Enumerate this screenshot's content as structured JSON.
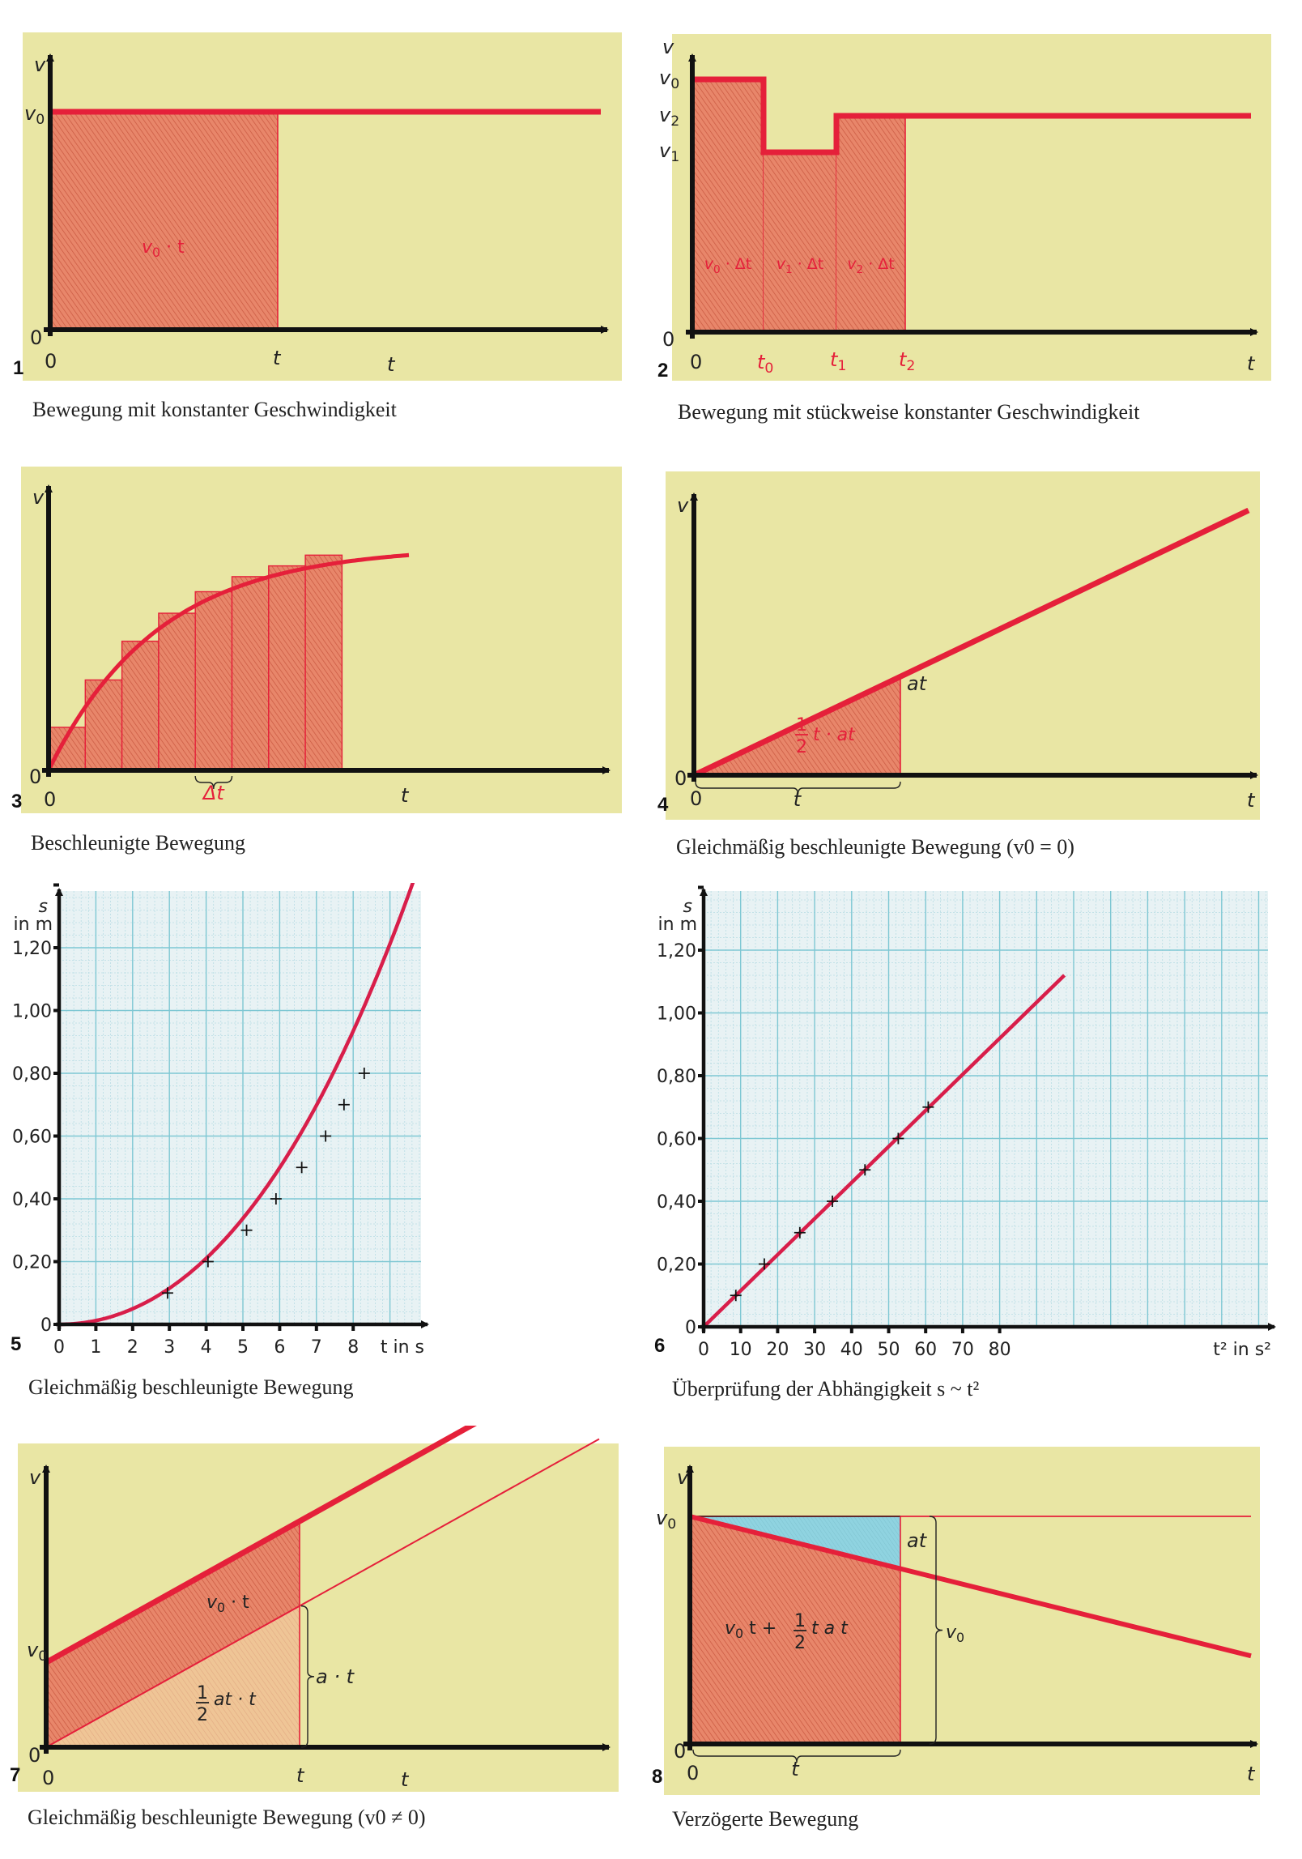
{
  "chart_data": [
    {
      "id": 1,
      "type": "area",
      "number": "1",
      "caption": "Bewegung mit konstanter Geschwindigkeit",
      "xlabel": "t",
      "ylabel": "v",
      "x_origin_label": "0",
      "y_origin_label": "0",
      "x_tick_labels": [
        "t"
      ],
      "y_tick_labels": [
        "v0"
      ],
      "series": [
        {
          "name": "v(t)",
          "x": [
            0,
            1.4
          ],
          "y": [
            1,
            1
          ]
        }
      ],
      "shaded": {
        "from": 0,
        "to": 1,
        "label": "v0 · t"
      },
      "xlim": [
        0,
        1.45
      ],
      "ylim": [
        0,
        1.6
      ]
    },
    {
      "id": 2,
      "type": "area",
      "number": "2",
      "caption": "Bewegung mit stückweise konstanter Geschwindigkeit",
      "xlabel": "t",
      "ylabel": "v",
      "x_origin_label": "0",
      "y_origin_label": "0",
      "x_tick_labels": [
        "t0",
        "t1",
        "t2"
      ],
      "y_tick_labels": [
        "v0",
        "v2",
        "v1"
      ],
      "steps": [
        {
          "from": 0,
          "to": 1,
          "v": 1.0,
          "label": "v0 · Δt"
        },
        {
          "from": 1,
          "to": 2,
          "v": 0.52,
          "label": "v1 · Δt"
        },
        {
          "from": 2,
          "to": 3,
          "v": 0.76,
          "label": "v2 · Δt"
        }
      ],
      "tail": {
        "from": 3,
        "to": 5.0,
        "v": 0.76
      },
      "xlim": [
        0,
        5.1
      ],
      "ylim": [
        0,
        1.3
      ]
    },
    {
      "id": 3,
      "type": "bar",
      "number": "3",
      "caption": "Beschleunigte Bewegung",
      "xlabel": "t",
      "ylabel": "v",
      "x_origin_label": "0",
      "y_origin_label": "0",
      "interval_label": "Δt",
      "bars": [
        0.2,
        0.42,
        0.6,
        0.73,
        0.83,
        0.9,
        0.95,
        1.0
      ],
      "curve": "v = 1 - exp(-t/3)",
      "xlim": [
        0,
        10.2
      ],
      "ylim": [
        0,
        1.25
      ]
    },
    {
      "id": 4,
      "type": "area",
      "number": "4",
      "caption": "Gleichmäßig beschleunigte Bewegung (v0 = 0)",
      "xlabel": "t",
      "ylabel": "v",
      "x_origin_label": "0",
      "y_origin_label": "0",
      "brace_label": "t",
      "height_label": "at",
      "area_label": {
        "fraction_num": "1",
        "fraction_den": "2",
        "text": "t · at"
      },
      "series": [
        {
          "name": "v = a·t",
          "x": [
            0,
            1.47
          ],
          "y": [
            0,
            1.47
          ]
        }
      ],
      "shaded_to": 1.0,
      "xlim": [
        0,
        1.5
      ],
      "ylim": [
        0,
        1.6
      ]
    },
    {
      "id": 5,
      "type": "scatter",
      "number": "5",
      "caption": "Gleichmäßig beschleunigte Bewegung",
      "xlabel": "t in s",
      "ylabel": "s",
      "ylabel_unit": "in m",
      "x_tick_labels": [
        "0",
        "1",
        "2",
        "3",
        "4",
        "5",
        "6",
        "7",
        "8"
      ],
      "y_tick_labels": [
        "0",
        "0,20",
        "0,40",
        "0,60",
        "0,80",
        "1,00",
        "1,20"
      ],
      "x_ticks": [
        0,
        1,
        2,
        3,
        4,
        5,
        6,
        7,
        8
      ],
      "y_ticks": [
        0,
        0.2,
        0.4,
        0.6,
        0.8,
        1.0,
        1.2
      ],
      "points": [
        {
          "x": 2.95,
          "y": 0.1
        },
        {
          "x": 4.05,
          "y": 0.2
        },
        {
          "x": 5.1,
          "y": 0.3
        },
        {
          "x": 5.9,
          "y": 0.4
        },
        {
          "x": 6.6,
          "y": 0.5
        },
        {
          "x": 7.25,
          "y": 0.6
        },
        {
          "x": 7.75,
          "y": 0.7
        },
        {
          "x": 8.3,
          "y": 0.8
        }
      ],
      "curve": "s = 0.0115 · t²",
      "xlim": [
        0,
        9.8
      ],
      "ylim": [
        0,
        1.5
      ]
    },
    {
      "id": 6,
      "type": "scatter",
      "number": "6",
      "caption": "Überprüfung der Abhängigkeit s ~ t²",
      "xlabel": "t² in s²",
      "ylabel": "s",
      "ylabel_unit": "in m",
      "x_tick_labels": [
        "0",
        "10",
        "20",
        "30",
        "40",
        "50",
        "60",
        "70",
        "80"
      ],
      "y_tick_labels": [
        "0",
        "0,20",
        "0,40",
        "0,60",
        "0,80",
        "1,00",
        "1,20"
      ],
      "x_ticks": [
        0,
        10,
        20,
        30,
        40,
        50,
        60,
        70,
        80
      ],
      "y_ticks": [
        0,
        0.2,
        0.4,
        0.6,
        0.8,
        1.0,
        1.2
      ],
      "points": [
        {
          "x": 8.7,
          "y": 0.1
        },
        {
          "x": 16.4,
          "y": 0.2
        },
        {
          "x": 26.0,
          "y": 0.3
        },
        {
          "x": 34.8,
          "y": 0.4
        },
        {
          "x": 43.6,
          "y": 0.5
        },
        {
          "x": 52.6,
          "y": 0.6
        },
        {
          "x": 60.7,
          "y": 0.7
        }
      ],
      "line": {
        "x": [
          0,
          97.5
        ],
        "y": [
          0,
          1.12
        ]
      },
      "xlim": [
        0,
        98
      ],
      "ylim": [
        0,
        1.5
      ]
    },
    {
      "id": 7,
      "type": "area",
      "number": "7",
      "caption": "Gleichmäßig beschleunigte Bewegung (v0 ≠ 0)",
      "xlabel": "t",
      "ylabel": "v",
      "x_origin_label": "0",
      "y_origin_label": "0",
      "x_tick_labels": [
        "t"
      ],
      "y_tick_labels": [
        "v0"
      ],
      "v0": 0.42,
      "a": 0.7,
      "t_mark": 1.0,
      "upper_label": "v0 · t",
      "lower_label": {
        "fraction_num": "1",
        "fraction_den": "2",
        "text": "at · t"
      },
      "brace_label": "a · t",
      "xlim": [
        0,
        1.45
      ],
      "ylim": [
        0,
        1.4
      ]
    },
    {
      "id": 8,
      "type": "area",
      "number": "8",
      "caption": "Verzögerte Bewegung",
      "xlabel": "t",
      "ylabel": "v",
      "x_origin_label": "0",
      "y_origin_label": "0",
      "y_tick_labels": [
        "v0"
      ],
      "brace_label": "t",
      "v0": 1.0,
      "a": -0.23,
      "t_mark": 1.0,
      "area_label": {
        "prefix": "v0 t +",
        "fraction_num": "1",
        "fraction_den": "2",
        "text": "t a t"
      },
      "diff_label": "at",
      "height_brace_label": "v0",
      "xlim": [
        0,
        1.45
      ],
      "ylim": [
        0,
        1.2
      ]
    }
  ],
  "colors": {
    "background": "#e9e6a4",
    "grid_paper": "#e8f2f4",
    "grid_major": "#7ec7d3",
    "grid_minor": "#b8dde4",
    "fill": "#e8866a",
    "fill_light": "#efc596",
    "curve": "#e5203a",
    "curve_grid": "#d81e4a",
    "blue_fill": "#8fd3e0",
    "axis": "#111111"
  }
}
